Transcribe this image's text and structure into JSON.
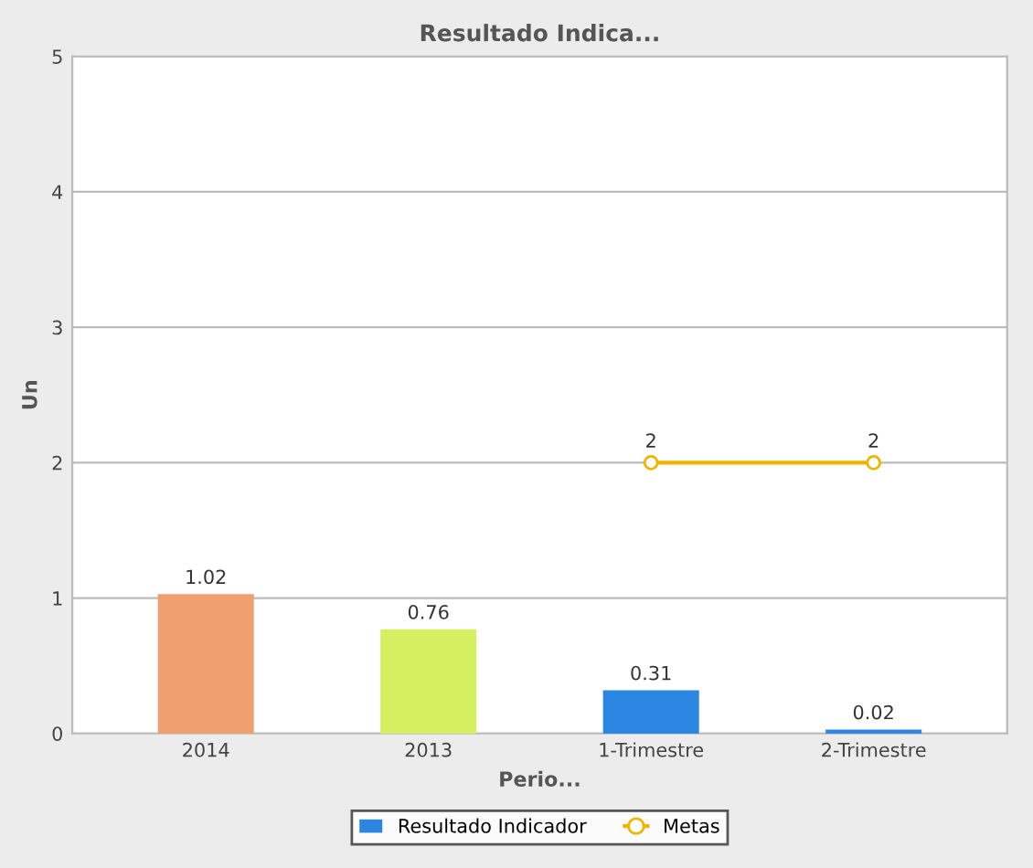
{
  "chart_data": {
    "type": "bar",
    "title": "Resultado Indica...",
    "xlabel": "Perio...",
    "ylabel": "Un",
    "categories": [
      "2014",
      "2013",
      "1-Trimestre",
      "2-Trimestre"
    ],
    "series": [
      {
        "name": "Resultado Indicador",
        "color": "#2a86e0",
        "colors": [
          "#f0a070",
          "#d4f060",
          "#2a86e0",
          "#2a86e0"
        ],
        "values": [
          1.02,
          0.76,
          0.31,
          0.02
        ]
      },
      {
        "name": "Metas",
        "type": "line",
        "color": "#f0b400",
        "values": [
          null,
          null,
          2,
          2
        ],
        "marker": "circle"
      }
    ],
    "ylim": [
      0,
      5
    ],
    "yticks": [
      0,
      1,
      2,
      3,
      4,
      5
    ],
    "grid": "y",
    "legend": "bottom",
    "data_labels": true
  }
}
